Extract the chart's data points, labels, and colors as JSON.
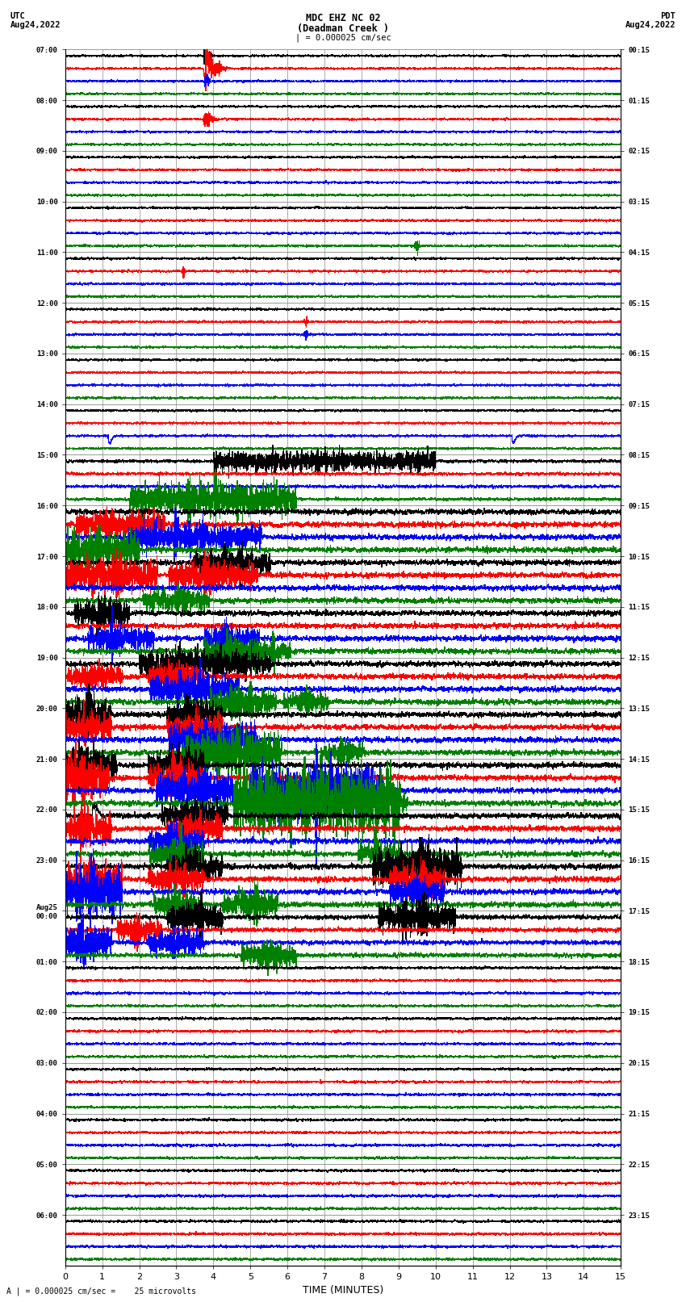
{
  "title_line1": "MDC EHZ NC 02",
  "title_line2": "(Deadman Creek )",
  "title_line3": "| = 0.000025 cm/sec",
  "left_label_top": "UTC",
  "left_label_date": "Aug24,2022",
  "right_label_top": "PDT",
  "right_label_date": "Aug24,2022",
  "bottom_label": "TIME (MINUTES)",
  "bottom_note": "A | = 0.000025 cm/sec =    25 microvolts",
  "xlabel_ticks": [
    0,
    1,
    2,
    3,
    4,
    5,
    6,
    7,
    8,
    9,
    10,
    11,
    12,
    13,
    14,
    15
  ],
  "utc_times": [
    "07:00",
    "08:00",
    "09:00",
    "10:00",
    "11:00",
    "12:00",
    "13:00",
    "14:00",
    "15:00",
    "16:00",
    "17:00",
    "18:00",
    "19:00",
    "20:00",
    "21:00",
    "22:00",
    "23:00",
    "Aug25\n00:00",
    "01:00",
    "02:00",
    "03:00",
    "04:00",
    "05:00",
    "06:00"
  ],
  "pdt_times": [
    "00:15",
    "01:15",
    "02:15",
    "03:15",
    "04:15",
    "05:15",
    "06:15",
    "07:15",
    "08:15",
    "09:15",
    "10:15",
    "11:15",
    "12:15",
    "13:15",
    "14:15",
    "15:15",
    "16:15",
    "17:15",
    "18:15",
    "19:15",
    "20:15",
    "21:15",
    "22:15",
    "23:15"
  ],
  "n_rows": 24,
  "n_cols": 4,
  "colors": [
    "black",
    "red",
    "blue",
    "green"
  ],
  "background_color": "white",
  "grid_color": "#888888",
  "noise_seed": 12345
}
